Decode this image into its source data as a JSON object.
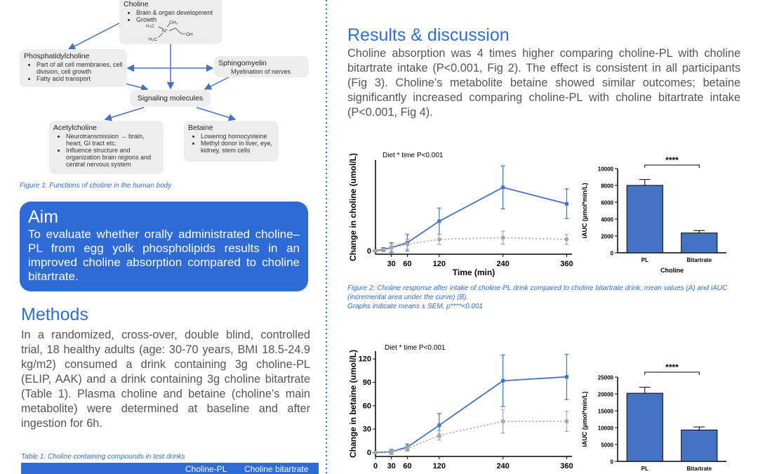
{
  "figure1": {
    "nodes": [
      {
        "label": "Choline",
        "items": [
          "Brain & organ development",
          "Growth"
        ]
      },
      {
        "label": "Phosphatidylcholine",
        "items": [
          "Part of all cell membranes, cell division, cell growth",
          "Fatty acid transport"
        ]
      },
      {
        "label": "Sphingomyelin",
        "items": [
          "Myelination of nerves"
        ]
      },
      {
        "label": "Signaling molecules"
      },
      {
        "label": "Acetylcholine",
        "items": [
          "Neurotransmission → brain, heart, GI tract etc.",
          "Influence structure and organization brain regions and central nervous system"
        ]
      },
      {
        "label": "Betaine",
        "items": [
          "Lowering homocysteine",
          "Methyl donor in liver, eye, kidney, stem cells"
        ]
      }
    ],
    "structure_labels": [
      "H₃C",
      "CH₃",
      "N⁺",
      "H₃C",
      "OH"
    ],
    "caption": "Figure 1: Functions of choline in the human body"
  },
  "aim": {
    "title": "Aim",
    "text": "To evaluate whether orally administrated choline–PL from egg yolk phospholipids results in an improved choline absorption compared to choline bitartrate."
  },
  "methods": {
    "title": "Methods",
    "text": "In a randomized, cross-over, double blind, controlled trial, 18 healthy adults (age: 30-70 years, BMI 18.5-24.9 kg/m2) consumed a drink containing 3g choline-PL (ELIP, AAK) and a drink containing 3g choline bitartrate (Table 1). Plasma choline and betaine (choline’s main metabolite) were determined at baseline and after ingestion for 6h."
  },
  "table": {
    "caption": "Table 1: Choline containing compounds in test drinks",
    "columns": [
      "Choline-PL",
      "Choline bitartrate"
    ]
  },
  "results": {
    "title": "Results & discussion",
    "text": "Choline absorption was 4 times higher comparing choline-PL with choline bitartrate intake (P<0.001, Fig 2). The effect is consistent in all participants (Fig 3). Choline’s metabolite betaine showed similar outcomes; betaine significantly increased comparing choline-PL with choline bitartrate intake (P<0.001, Fig 4)."
  },
  "figure2": {
    "caption": "Figure 2: Choline response after intake of choline-PL drink compared to choline bitartrate drink; mean values (A) and iAUC (incremental area under the curve) (B).",
    "note": "Graphs indicate means ± SEM, p****<0.001"
  },
  "chart_data": [
    {
      "type": "line",
      "y_label": "Change in choline (umol/L)",
      "x_label": "Time (min)",
      "annotation": "Diet * time P<0.001",
      "x": [
        0,
        15,
        30,
        60,
        120,
        240,
        360
      ],
      "xlim": [
        0,
        370
      ],
      "xticks": [
        30,
        60,
        120,
        240,
        360
      ],
      "ylim": [
        -2,
        55
      ],
      "yticks": [
        0
      ],
      "series": [
        {
          "color": "#4472c4",
          "line_style": "solid",
          "values": [
            0,
            1,
            2,
            5,
            18,
            38.5,
            28.5
          ],
          "errors": [
            0,
            1,
            3,
            5,
            8,
            13,
            9
          ]
        },
        {
          "color": "#a6a6a6",
          "line_style": "dotted",
          "values": [
            0,
            0.5,
            2,
            4,
            7,
            8,
            7
          ],
          "errors": [
            0,
            1,
            2,
            3,
            3,
            4,
            3
          ]
        }
      ]
    },
    {
      "type": "bar",
      "y_label": "iAUC (µmol*min/L)",
      "x_label": "Choline",
      "annotation": "****",
      "categories": [
        "PL",
        "Bitartrate"
      ],
      "values": [
        8000,
        2350
      ],
      "errors": [
        700,
        300
      ],
      "color": "#4472c4",
      "ylim": [
        0,
        10000
      ],
      "yticks": [
        0,
        2000,
        4000,
        6000,
        8000,
        10000
      ]
    },
    {
      "type": "line",
      "y_label": "Change in betaine (umol/L)",
      "annotation": "Diet * time P<0.001",
      "x": [
        0,
        30,
        60,
        120,
        240,
        360
      ],
      "xlim": [
        0,
        370
      ],
      "xticks": [
        0,
        30,
        60,
        120,
        240,
        360
      ],
      "ylim": [
        -5,
        130
      ],
      "yticks": [
        0,
        30,
        60,
        90,
        120
      ],
      "series": [
        {
          "color": "#4472c4",
          "line_style": "solid",
          "values": [
            0,
            1,
            7,
            35,
            92,
            97
          ],
          "errors": [
            0,
            3,
            4,
            15,
            33,
            29
          ]
        },
        {
          "color": "#a6a6a6",
          "line_style": "dotted",
          "values": [
            0,
            1,
            5,
            22,
            40,
            40
          ],
          "errors": [
            0,
            2,
            3,
            6,
            15,
            13
          ]
        }
      ]
    },
    {
      "type": "bar",
      "y_label": "iAUC (µmol*min/L)",
      "annotation": "****",
      "categories": [
        "PL",
        "Bitartrate"
      ],
      "values": [
        20200,
        9300
      ],
      "errors": [
        1800,
        900
      ],
      "color": "#4472c4",
      "ylim": [
        0,
        25000
      ],
      "yticks": [
        0,
        5000,
        10000,
        15000,
        20000,
        25000
      ]
    }
  ]
}
